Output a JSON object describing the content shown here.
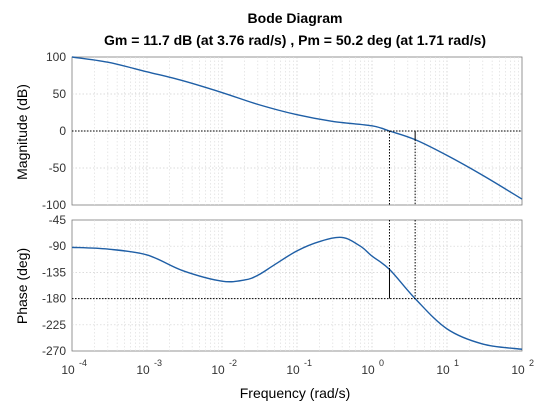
{
  "chart_data": {
    "type": "line",
    "title": "Bode Diagram",
    "subtitle": "Gm = 11.7 dB (at 3.76 rad/s) ,  Pm = 50.2 deg (at 1.71 rad/s)",
    "xlabel": "Frequency  (rad/s)",
    "xscale": "log",
    "xlim": [
      0.0001,
      100
    ],
    "x_tick_labels": [
      {
        "base": "10",
        "exp": "-4"
      },
      {
        "base": "10",
        "exp": "-3"
      },
      {
        "base": "10",
        "exp": "-2"
      },
      {
        "base": "10",
        "exp": "-1"
      },
      {
        "base": "10",
        "exp": "0"
      },
      {
        "base": "10",
        "exp": "1"
      },
      {
        "base": "10",
        "exp": "2"
      }
    ],
    "grid": true,
    "line_color": "#1f5fa6",
    "panels": [
      {
        "name": "magnitude",
        "ylabel": "Magnitude (dB)",
        "ylim": [
          -100,
          100
        ],
        "yticks": [
          "100",
          "50",
          "0",
          "-50",
          "-100"
        ],
        "ytick_values": [
          100,
          50,
          0,
          -50,
          -100
        ],
        "reference_y": 0,
        "x": [
          0.0001,
          0.0003,
          0.001,
          0.003,
          0.01,
          0.03,
          0.1,
          0.3,
          1,
          1.71,
          3.76,
          10,
          30,
          100
        ],
        "y": [
          100,
          93,
          80,
          68,
          52,
          36,
          22,
          13,
          7,
          0,
          -11.7,
          -33,
          -60,
          -92
        ]
      },
      {
        "name": "phase",
        "ylabel": "Phase (deg)",
        "ylim": [
          -270,
          -45
        ],
        "yticks": [
          "-45",
          "-90",
          "-135",
          "-180",
          "-225",
          "-270"
        ],
        "ytick_values": [
          -45,
          -90,
          -135,
          -180,
          -225,
          -270
        ],
        "reference_y": -180,
        "x": [
          0.0001,
          0.0003,
          0.001,
          0.003,
          0.01,
          0.02,
          0.03,
          0.05,
          0.1,
          0.2,
          0.4,
          0.7,
          1,
          1.71,
          3.76,
          10,
          30,
          100
        ],
        "y": [
          -92,
          -95,
          -105,
          -132,
          -150,
          -148,
          -140,
          -122,
          -98,
          -82,
          -75,
          -90,
          -107,
          -129.8,
          -180,
          -232,
          -258,
          -267
        ]
      }
    ],
    "annotations": {
      "gain_margin": {
        "frequency": 3.76,
        "value_db": 11.7
      },
      "phase_margin": {
        "frequency": 1.71,
        "value_deg": 50.2
      }
    }
  }
}
